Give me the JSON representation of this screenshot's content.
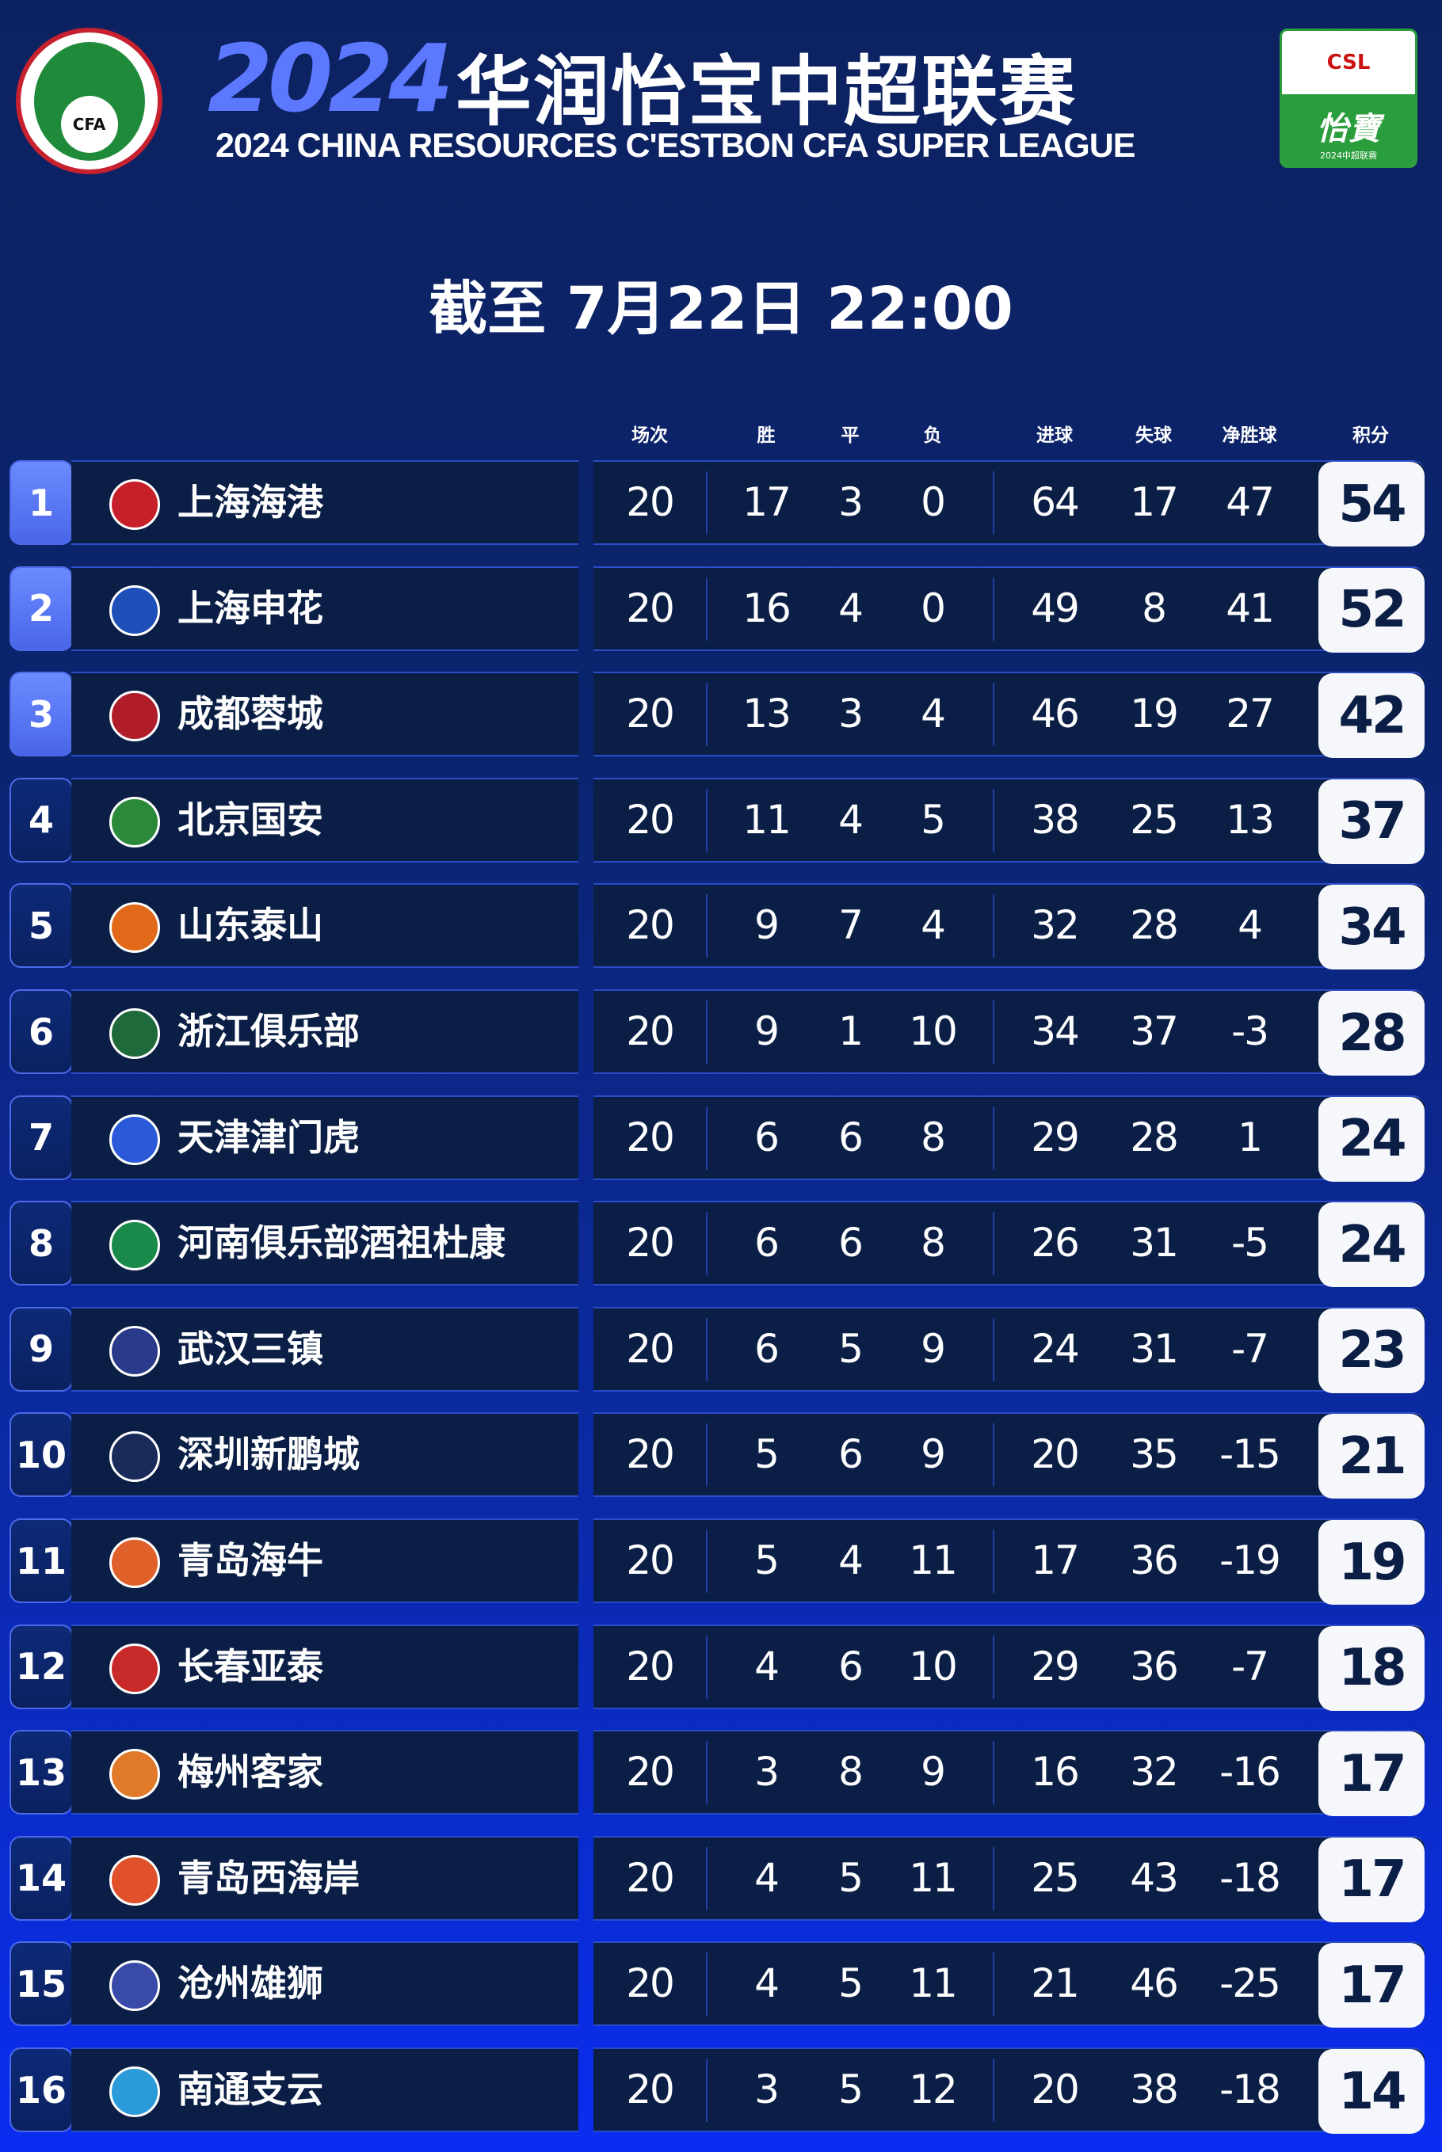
{
  "header": {
    "cfa_logo_text": "CFA",
    "title_year": "2024",
    "title_cn": "华润怡宝中超联赛",
    "title_en": "2024 CHINA RESOURCES C'ESTBON CFA SUPER LEAGUE",
    "csl_logo_text": "CSL",
    "csl_brand": "怡寶",
    "csl_sub": "2024中超联赛"
  },
  "date": "截至 7月22日 22:00",
  "columns": [
    "场次",
    "胜",
    "平",
    "负",
    "进球",
    "失球",
    "净胜球",
    "积分"
  ],
  "colors": {
    "rank_top": "#5b7cf5",
    "rank_other": "#0b2470",
    "row_bg": "#0b1f46",
    "points_bg": "#f6f7fa"
  },
  "teams": [
    {
      "rank": "1",
      "name": "上海海港",
      "logo_color": "#c8202a",
      "played": "20",
      "w": "17",
      "d": "3",
      "l": "0",
      "gf": "64",
      "ga": "17",
      "gd": "47",
      "pts": "54"
    },
    {
      "rank": "2",
      "name": "上海申花",
      "logo_color": "#1f4fb8",
      "played": "20",
      "w": "16",
      "d": "4",
      "l": "0",
      "gf": "49",
      "ga": "8",
      "gd": "41",
      "pts": "52"
    },
    {
      "rank": "3",
      "name": "成都蓉城",
      "logo_color": "#b01c2a",
      "played": "20",
      "w": "13",
      "d": "3",
      "l": "4",
      "gf": "46",
      "ga": "19",
      "gd": "27",
      "pts": "42"
    },
    {
      "rank": "4",
      "name": "北京国安",
      "logo_color": "#2a8a3a",
      "played": "20",
      "w": "11",
      "d": "4",
      "l": "5",
      "gf": "38",
      "ga": "25",
      "gd": "13",
      "pts": "37"
    },
    {
      "rank": "5",
      "name": "山东泰山",
      "logo_color": "#e06a1a",
      "played": "20",
      "w": "9",
      "d": "7",
      "l": "4",
      "gf": "32",
      "ga": "28",
      "gd": "4",
      "pts": "34"
    },
    {
      "rank": "6",
      "name": "浙江俱乐部",
      "logo_color": "#1f6a3a",
      "played": "20",
      "w": "9",
      "d": "1",
      "l": "10",
      "gf": "34",
      "ga": "37",
      "gd": "-3",
      "pts": "28"
    },
    {
      "rank": "7",
      "name": "天津津门虎",
      "logo_color": "#2a5ad8",
      "played": "20",
      "w": "6",
      "d": "6",
      "l": "8",
      "gf": "29",
      "ga": "28",
      "gd": "1",
      "pts": "24"
    },
    {
      "rank": "8",
      "name": "河南俱乐部酒祖杜康",
      "logo_color": "#1a8a4a",
      "played": "20",
      "w": "6",
      "d": "6",
      "l": "8",
      "gf": "26",
      "ga": "31",
      "gd": "-5",
      "pts": "24"
    },
    {
      "rank": "9",
      "name": "武汉三镇",
      "logo_color": "#2a3a8a",
      "played": "20",
      "w": "6",
      "d": "5",
      "l": "9",
      "gf": "24",
      "ga": "31",
      "gd": "-7",
      "pts": "23"
    },
    {
      "rank": "10",
      "name": "深圳新鹏城",
      "logo_color": "#1a2a5a",
      "played": "20",
      "w": "5",
      "d": "6",
      "l": "9",
      "gf": "20",
      "ga": "35",
      "gd": "-15",
      "pts": "21"
    },
    {
      "rank": "11",
      "name": "青岛海牛",
      "logo_color": "#e0602a",
      "played": "20",
      "w": "5",
      "d": "4",
      "l": "11",
      "gf": "17",
      "ga": "36",
      "gd": "-19",
      "pts": "19"
    },
    {
      "rank": "12",
      "name": "长春亚泰",
      "logo_color": "#c82a2a",
      "played": "20",
      "w": "4",
      "d": "6",
      "l": "10",
      "gf": "29",
      "ga": "36",
      "gd": "-7",
      "pts": "18"
    },
    {
      "rank": "13",
      "name": "梅州客家",
      "logo_color": "#e07a2a",
      "played": "20",
      "w": "3",
      "d": "8",
      "l": "9",
      "gf": "16",
      "ga": "32",
      "gd": "-16",
      "pts": "17"
    },
    {
      "rank": "14",
      "name": "青岛西海岸",
      "logo_color": "#e0502a",
      "played": "20",
      "w": "4",
      "d": "5",
      "l": "11",
      "gf": "25",
      "ga": "43",
      "gd": "-18",
      "pts": "17"
    },
    {
      "rank": "15",
      "name": "沧州雄狮",
      "logo_color": "#3a4aa8",
      "played": "20",
      "w": "4",
      "d": "5",
      "l": "11",
      "gf": "21",
      "ga": "46",
      "gd": "-25",
      "pts": "17"
    },
    {
      "rank": "16",
      "name": "南通支云",
      "logo_color": "#2a9ad8",
      "played": "20",
      "w": "3",
      "d": "5",
      "l": "12",
      "gf": "20",
      "ga": "38",
      "gd": "-18",
      "pts": "14"
    }
  ]
}
